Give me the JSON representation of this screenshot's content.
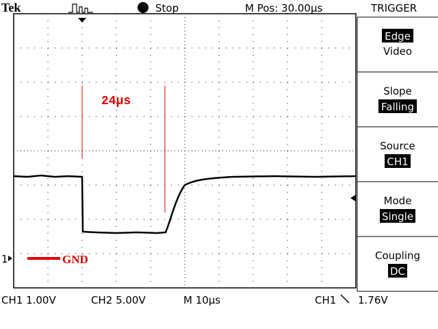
{
  "header": {
    "brand": "Tek",
    "status": "Stop",
    "position": "M Pos: 30.00µs",
    "menu_title": "TRIGGER"
  },
  "menu": [
    {
      "label": "Edge",
      "value": "Video"
    },
    {
      "label": "Slope",
      "value": "Falling"
    },
    {
      "label": "Source",
      "value": "CH1"
    },
    {
      "label": "Mode",
      "value": "Single"
    },
    {
      "label": "Coupling",
      "value": "DC"
    }
  ],
  "annotations": {
    "interval": "24µs",
    "ground": "GND",
    "channel_marker": "1"
  },
  "footer": {
    "ch1_scale": "CH1 1.00V",
    "ch2_scale": "CH2 5.00V",
    "time_scale": "M 10µs",
    "trigger_source": "CH1",
    "trigger_level": "1.76V"
  }
}
